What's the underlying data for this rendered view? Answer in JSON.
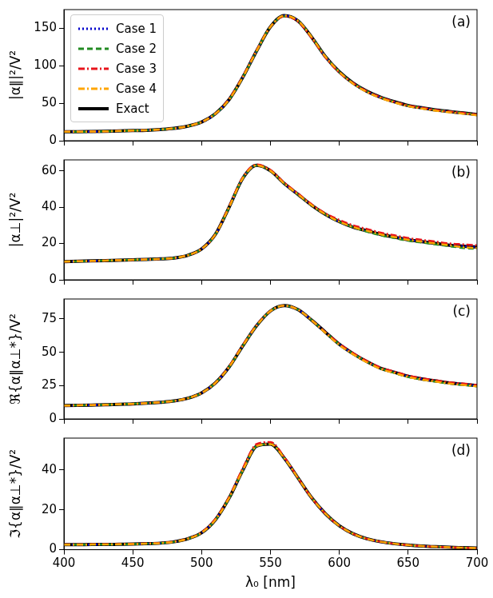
{
  "chart_data": [
    {
      "type": "line",
      "y_label": "|α∥|²/V²",
      "annotations": [
        "(a)"
      ],
      "tick_labels": "y",
      "grid": false,
      "legend": "upper left",
      "xlim": [
        400,
        700
      ],
      "xticks": [
        400,
        450,
        500,
        550,
        600,
        650,
        700
      ],
      "ylim": [
        0,
        175
      ],
      "yticks": [
        0,
        50,
        100,
        150
      ],
      "x": [
        400,
        410,
        420,
        430,
        440,
        450,
        460,
        470,
        480,
        490,
        500,
        510,
        520,
        530,
        540,
        550,
        560,
        570,
        580,
        590,
        600,
        610,
        620,
        630,
        640,
        650,
        660,
        670,
        680,
        690,
        700
      ],
      "series": [
        {
          "name": "Case 1",
          "color": "#0000cc",
          "line_style": "dotted",
          "values": [
            12,
            12,
            12.2,
            12.5,
            13,
            13.5,
            14,
            15,
            16.5,
            19.5,
            25,
            36,
            55,
            85,
            120,
            152,
            167,
            160,
            138,
            112,
            92,
            77,
            66,
            58,
            52,
            47,
            44,
            41,
            39,
            37,
            35
          ]
        },
        {
          "name": "Case 2",
          "color": "#228b22",
          "line_style": "dashed",
          "values": [
            12,
            12,
            12.2,
            12.5,
            13,
            13.5,
            14,
            15,
            16.5,
            19.5,
            25,
            36,
            55,
            85,
            120,
            152,
            166,
            160,
            138,
            112,
            92,
            77,
            66,
            58,
            52,
            47,
            44,
            41,
            39,
            37,
            35
          ]
        },
        {
          "name": "Case 3",
          "color": "#e8141c",
          "line_style": "dashdot",
          "values": [
            12,
            12,
            12.2,
            12.5,
            13,
            13.5,
            14,
            15,
            16.5,
            19.5,
            25,
            36,
            56,
            86,
            121,
            152,
            166,
            159,
            137,
            111,
            91,
            77,
            66,
            58,
            52,
            47,
            44,
            41,
            39,
            37,
            35
          ]
        },
        {
          "name": "Case 4",
          "color": "#ffa500",
          "line_style": "dashdot",
          "values": [
            12,
            12,
            12.2,
            12.5,
            13,
            13.5,
            14,
            15,
            16.5,
            19.5,
            25,
            36,
            55,
            85,
            120,
            152,
            167,
            160,
            138,
            112,
            92,
            76,
            65,
            57,
            51,
            46,
            43,
            40,
            38,
            36,
            34
          ]
        },
        {
          "name": "Exact",
          "color": "#000000",
          "line_style": "solid",
          "values": [
            12,
            12,
            12.2,
            12.5,
            13,
            13.5,
            14,
            15,
            16.5,
            19.5,
            25,
            36,
            55,
            85,
            120,
            152,
            167,
            160,
            138,
            112,
            92,
            77,
            66,
            58,
            52,
            47,
            44,
            41,
            39,
            37,
            35
          ]
        }
      ]
    },
    {
      "type": "line",
      "y_label": "|α⊥|²/V²",
      "annotations": [
        "(b)"
      ],
      "tick_labels": "y",
      "grid": false,
      "xlim": [
        400,
        700
      ],
      "xticks": [
        400,
        450,
        500,
        550,
        600,
        650,
        700
      ],
      "ylim": [
        0,
        66
      ],
      "yticks": [
        0,
        20,
        40,
        60
      ],
      "x": [
        400,
        410,
        420,
        430,
        440,
        450,
        460,
        470,
        480,
        490,
        500,
        510,
        520,
        530,
        540,
        550,
        560,
        570,
        580,
        590,
        600,
        610,
        620,
        630,
        640,
        650,
        660,
        670,
        680,
        690,
        700
      ],
      "series": [
        {
          "name": "Case 1",
          "color": "#0000cc",
          "line_style": "dotted",
          "values": [
            10,
            10.2,
            10.4,
            10.6,
            10.8,
            11,
            11.2,
            11.5,
            12,
            13.5,
            17,
            25,
            40,
            56,
            63,
            60,
            53,
            47,
            41,
            36,
            32,
            29,
            27,
            25,
            23.5,
            22,
            21,
            20,
            19,
            18.5,
            18
          ]
        },
        {
          "name": "Case 2",
          "color": "#228b22",
          "line_style": "dashed",
          "values": [
            10,
            10.2,
            10.4,
            10.6,
            10.8,
            11,
            11.2,
            11.5,
            12,
            13.5,
            17,
            25,
            40,
            56,
            63,
            60,
            53,
            47,
            41,
            36,
            32,
            29,
            26.5,
            24.5,
            23,
            21.5,
            20.5,
            19.5,
            18.5,
            17.5,
            17
          ]
        },
        {
          "name": "Case 3",
          "color": "#e8141c",
          "line_style": "dashdot",
          "values": [
            10,
            10.2,
            10.4,
            10.6,
            10.8,
            11,
            11.2,
            11.5,
            12,
            13.5,
            17,
            25,
            40.5,
            56.5,
            63.5,
            60.5,
            53.5,
            47.5,
            41.5,
            36.5,
            33,
            30,
            28,
            26,
            24.5,
            23,
            22,
            21,
            20,
            19.5,
            19
          ]
        },
        {
          "name": "Case 4",
          "color": "#ffa500",
          "line_style": "dashdot",
          "values": [
            10,
            10.2,
            10.4,
            10.6,
            10.8,
            11,
            11.2,
            11.5,
            12,
            13.5,
            17,
            25,
            40,
            56,
            63,
            60,
            53,
            47,
            41,
            36,
            32,
            29,
            27,
            25,
            23.5,
            22,
            21,
            20,
            19,
            18,
            17.5
          ]
        },
        {
          "name": "Exact",
          "color": "#000000",
          "line_style": "solid",
          "values": [
            10,
            10.2,
            10.4,
            10.6,
            10.8,
            11,
            11.2,
            11.5,
            12,
            13.5,
            17,
            25,
            40,
            56,
            63,
            60,
            53,
            47,
            41,
            36,
            32,
            29,
            27,
            25,
            23.5,
            22,
            21,
            20,
            19,
            18.5,
            18
          ]
        }
      ]
    },
    {
      "type": "line",
      "y_label": "ℜ{α∥α⊥*}/V²",
      "annotations": [
        "(c)"
      ],
      "tick_labels": "y",
      "grid": false,
      "xlim": [
        400,
        700
      ],
      "xticks": [
        400,
        450,
        500,
        550,
        600,
        650,
        700
      ],
      "ylim": [
        0,
        90
      ],
      "yticks": [
        0,
        25,
        50,
        75
      ],
      "x": [
        400,
        410,
        420,
        430,
        440,
        450,
        460,
        470,
        480,
        490,
        500,
        510,
        520,
        530,
        540,
        550,
        560,
        570,
        580,
        590,
        600,
        610,
        620,
        630,
        640,
        650,
        660,
        670,
        680,
        690,
        700
      ],
      "series": [
        {
          "name": "Case 1",
          "color": "#0000cc",
          "line_style": "dotted",
          "values": [
            10,
            10.2,
            10.4,
            10.6,
            11,
            11.3,
            11.8,
            12.5,
            13.5,
            15.5,
            19.5,
            27,
            39,
            55,
            70,
            81,
            85,
            82,
            74,
            65,
            56,
            49,
            43,
            38,
            35,
            32,
            30,
            28.5,
            27,
            26,
            25
          ]
        },
        {
          "name": "Case 2",
          "color": "#228b22",
          "line_style": "dashed",
          "values": [
            10,
            10.2,
            10.4,
            10.6,
            11,
            11.3,
            11.8,
            12.5,
            13.5,
            15.5,
            19.5,
            27,
            39,
            55,
            70,
            81,
            85,
            82,
            74,
            65,
            56,
            49,
            43,
            38,
            34.5,
            31.5,
            29.5,
            28,
            26.5,
            25.5,
            24.5
          ]
        },
        {
          "name": "Case 3",
          "color": "#e8141c",
          "line_style": "dashdot",
          "values": [
            10,
            10.2,
            10.4,
            10.6,
            11,
            11.3,
            11.8,
            12.5,
            13.5,
            15.5,
            19.5,
            27,
            39.5,
            55.5,
            70.5,
            81,
            85,
            82,
            74,
            65,
            56.5,
            49.5,
            43.5,
            38.5,
            35.5,
            32.5,
            30.5,
            29,
            27.5,
            26.5,
            25.5
          ]
        },
        {
          "name": "Case 4",
          "color": "#ffa500",
          "line_style": "dashdot",
          "values": [
            10,
            10.2,
            10.4,
            10.6,
            11,
            11.3,
            11.8,
            12.5,
            13.5,
            15.5,
            19.5,
            27,
            39,
            55,
            70,
            81,
            85,
            82,
            74,
            64.5,
            55.5,
            48.5,
            42.5,
            37.5,
            34.5,
            31.5,
            29.5,
            28,
            26.5,
            25.5,
            24.5
          ]
        },
        {
          "name": "Exact",
          "color": "#000000",
          "line_style": "solid",
          "values": [
            10,
            10.2,
            10.4,
            10.6,
            11,
            11.3,
            11.8,
            12.5,
            13.5,
            15.5,
            19.5,
            27,
            39,
            55,
            70,
            81,
            85,
            82,
            74,
            65,
            56,
            49,
            43,
            38,
            35,
            32,
            30,
            28.5,
            27,
            26,
            25
          ]
        }
      ]
    },
    {
      "type": "line",
      "y_label": "ℑ{α∥α⊥*}/V²",
      "x_label": "λ₀ [nm]",
      "annotations": [
        "(d)"
      ],
      "grid": false,
      "xlim": [
        400,
        700
      ],
      "xticks": [
        400,
        450,
        500,
        550,
        600,
        650,
        700
      ],
      "ylim": [
        0,
        56
      ],
      "yticks": [
        0,
        20,
        40
      ],
      "x": [
        400,
        410,
        420,
        430,
        440,
        450,
        460,
        470,
        480,
        490,
        500,
        510,
        520,
        530,
        540,
        550,
        560,
        570,
        580,
        590,
        600,
        610,
        620,
        630,
        640,
        650,
        660,
        670,
        680,
        690,
        700
      ],
      "series": [
        {
          "name": "Case 1",
          "color": "#0000cc",
          "line_style": "dotted",
          "values": [
            2.5,
            2.5,
            2.6,
            2.6,
            2.7,
            2.8,
            3,
            3.3,
            4,
            5.5,
            8.5,
            15,
            26,
            40,
            52,
            53,
            46,
            36,
            26,
            18,
            12,
            8,
            5.5,
            4,
            3,
            2.3,
            1.8,
            1.5,
            1.2,
            1,
            0.8
          ]
        },
        {
          "name": "Case 2",
          "color": "#228b22",
          "line_style": "dashed",
          "values": [
            2.5,
            2.5,
            2.6,
            2.6,
            2.7,
            2.8,
            3,
            3.3,
            4,
            5.5,
            8.5,
            15,
            26,
            40,
            52,
            53,
            46,
            36,
            26,
            18,
            12,
            8,
            5.5,
            4,
            3,
            2.3,
            1.8,
            1.5,
            1.2,
            1,
            0.8
          ]
        },
        {
          "name": "Case 3",
          "color": "#e8141c",
          "line_style": "dashdot",
          "values": [
            2.6,
            2.6,
            2.7,
            2.7,
            2.8,
            2.9,
            3.1,
            3.4,
            4.1,
            5.6,
            8.7,
            15.5,
            26.5,
            41,
            53,
            54,
            46.5,
            36,
            26,
            18,
            12,
            8,
            5.5,
            4,
            3,
            2.3,
            1.8,
            1.5,
            1.2,
            1,
            0.8
          ]
        },
        {
          "name": "Case 4",
          "color": "#ffa500",
          "line_style": "dashdot",
          "values": [
            2.5,
            2.5,
            2.6,
            2.6,
            2.7,
            2.8,
            3,
            3.3,
            4,
            5.5,
            8.5,
            15,
            26,
            40,
            52,
            53,
            46,
            36,
            26,
            18,
            12,
            8,
            5.5,
            4,
            3,
            2.3,
            1.8,
            1.5,
            1.2,
            1,
            0.8
          ]
        },
        {
          "name": "Exact",
          "color": "#000000",
          "line_style": "solid",
          "values": [
            2.5,
            2.5,
            2.6,
            2.6,
            2.7,
            2.8,
            3,
            3.3,
            4,
            5.5,
            8.5,
            15,
            26,
            40,
            52,
            53,
            46,
            36,
            26,
            18,
            12,
            8,
            5.5,
            4,
            3,
            2.3,
            1.8,
            1.5,
            1.2,
            1,
            0.8
          ]
        }
      ]
    }
  ]
}
